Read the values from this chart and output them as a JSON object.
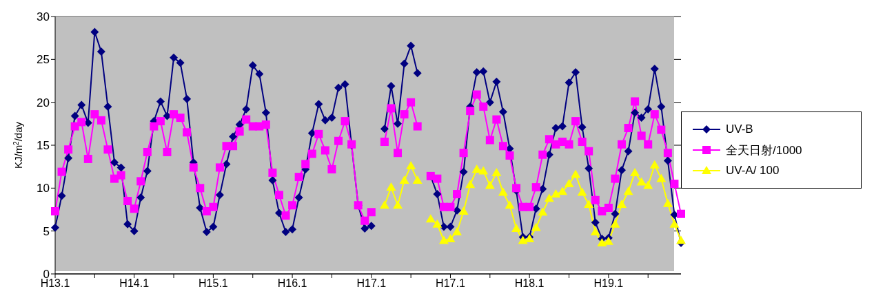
{
  "chart_data": {
    "type": "line",
    "ylabel": "KJ/m$^{2}$/day",
    "categories": [
      "H13.1",
      null,
      null,
      null,
      null,
      null,
      null,
      null,
      null,
      null,
      null,
      null,
      "H14.1",
      null,
      null,
      null,
      null,
      null,
      null,
      null,
      null,
      null,
      null,
      null,
      "H15.1",
      null,
      null,
      null,
      null,
      null,
      null,
      null,
      null,
      null,
      null,
      null,
      "H16.1",
      null,
      null,
      null,
      null,
      null,
      null,
      null,
      null,
      null,
      null,
      null,
      "H17.1",
      null,
      null,
      null,
      null,
      null,
      null,
      null,
      null,
      null,
      null,
      null,
      "H17.1",
      null,
      null,
      null,
      null,
      null,
      null,
      null,
      null,
      null,
      null,
      null,
      "H18.1",
      null,
      null,
      null,
      null,
      null,
      null,
      null,
      null,
      null,
      null,
      null,
      "H19.1",
      null,
      null,
      null,
      null,
      null,
      null,
      null,
      null,
      null,
      null,
      null
    ],
    "series": [
      {
        "name": "UV-B",
        "color": "#000080",
        "marker": "diamond",
        "values": [
          5.4,
          9.1,
          13.5,
          18.4,
          19.7,
          17.6,
          28.2,
          25.9,
          19.5,
          13.0,
          12.4,
          5.8,
          5.0,
          8.9,
          12.0,
          17.8,
          20.1,
          18.4,
          25.2,
          24.6,
          20.4,
          13.0,
          7.7,
          4.9,
          5.5,
          9.2,
          12.8,
          16.0,
          17.4,
          19.2,
          24.3,
          23.3,
          18.8,
          10.9,
          7.1,
          4.9,
          5.2,
          8.9,
          12.2,
          16.4,
          19.8,
          17.9,
          18.2,
          21.7,
          22.1,
          15.0,
          8.0,
          5.3,
          5.6,
          null,
          16.9,
          21.9,
          17.5,
          24.5,
          26.6,
          23.4,
          null,
          11.4,
          9.3,
          5.5,
          5.5,
          7.4,
          11.9,
          19.5,
          23.5,
          23.6,
          20.0,
          22.4,
          18.9,
          14.6,
          9.7,
          4.3,
          4.3,
          7.6,
          9.9,
          13.9,
          17.0,
          17.2,
          22.3,
          23.5,
          17.1,
          12.3,
          6.0,
          4.1,
          4.2,
          7.0,
          12.1,
          14.3,
          18.8,
          18.2,
          19.2,
          23.9,
          19.5,
          13.2,
          6.9,
          3.6
        ]
      },
      {
        "name": "全天日射/1000",
        "color": "#ff00ff",
        "marker": "square",
        "values": [
          7.3,
          11.9,
          14.5,
          17.2,
          17.7,
          13.4,
          18.6,
          17.9,
          14.5,
          11.1,
          11.5,
          8.5,
          7.6,
          10.8,
          14.2,
          17.2,
          17.8,
          14.2,
          18.6,
          18.2,
          16.5,
          12.4,
          10.0,
          7.3,
          7.8,
          12.4,
          14.9,
          14.9,
          16.6,
          18.0,
          17.2,
          17.2,
          17.4,
          11.8,
          9.2,
          6.8,
          8.0,
          11.3,
          12.8,
          14.0,
          16.3,
          14.4,
          12.2,
          15.5,
          17.8,
          15.1,
          8.0,
          6.2,
          7.2,
          null,
          15.4,
          19.3,
          14.1,
          18.6,
          20.0,
          17.2,
          null,
          11.4,
          11.1,
          7.8,
          7.8,
          9.3,
          14.1,
          19.0,
          20.9,
          19.5,
          15.6,
          18.0,
          14.9,
          13.8,
          10.0,
          7.8,
          7.8,
          10.1,
          13.9,
          15.7,
          15.1,
          15.4,
          15.1,
          17.8,
          15.4,
          14.3,
          8.6,
          7.3,
          7.7,
          11.1,
          15.1,
          17.0,
          20.1,
          16.1,
          15.1,
          18.6,
          16.8,
          14.1,
          10.5,
          7.0
        ]
      },
      {
        "name": "UV-A/ 100",
        "color": "#ffff00",
        "marker": "triangle",
        "values": [
          null,
          null,
          null,
          null,
          null,
          null,
          null,
          null,
          null,
          null,
          null,
          null,
          null,
          null,
          null,
          null,
          null,
          null,
          null,
          null,
          null,
          null,
          null,
          null,
          null,
          null,
          null,
          null,
          null,
          null,
          null,
          null,
          null,
          null,
          null,
          null,
          null,
          null,
          null,
          null,
          null,
          null,
          null,
          null,
          null,
          null,
          null,
          null,
          null,
          null,
          8.0,
          10.1,
          8.0,
          10.9,
          12.6,
          10.9,
          null,
          6.4,
          5.8,
          3.9,
          4.1,
          4.9,
          7.3,
          10.4,
          12.2,
          12.0,
          10.3,
          11.8,
          9.5,
          8.0,
          5.3,
          3.9,
          4.1,
          5.4,
          7.2,
          8.8,
          9.3,
          9.6,
          10.5,
          11.6,
          9.5,
          8.1,
          4.9,
          3.6,
          3.8,
          5.8,
          8.1,
          9.6,
          11.8,
          10.7,
          10.3,
          12.7,
          11.1,
          8.2,
          5.8,
          3.9
        ]
      }
    ],
    "ylim": [
      0,
      30
    ],
    "yticks": [
      0,
      5,
      10,
      15,
      20,
      25,
      30
    ],
    "grid": "y",
    "legend": "right",
    "line_style": "solid"
  }
}
